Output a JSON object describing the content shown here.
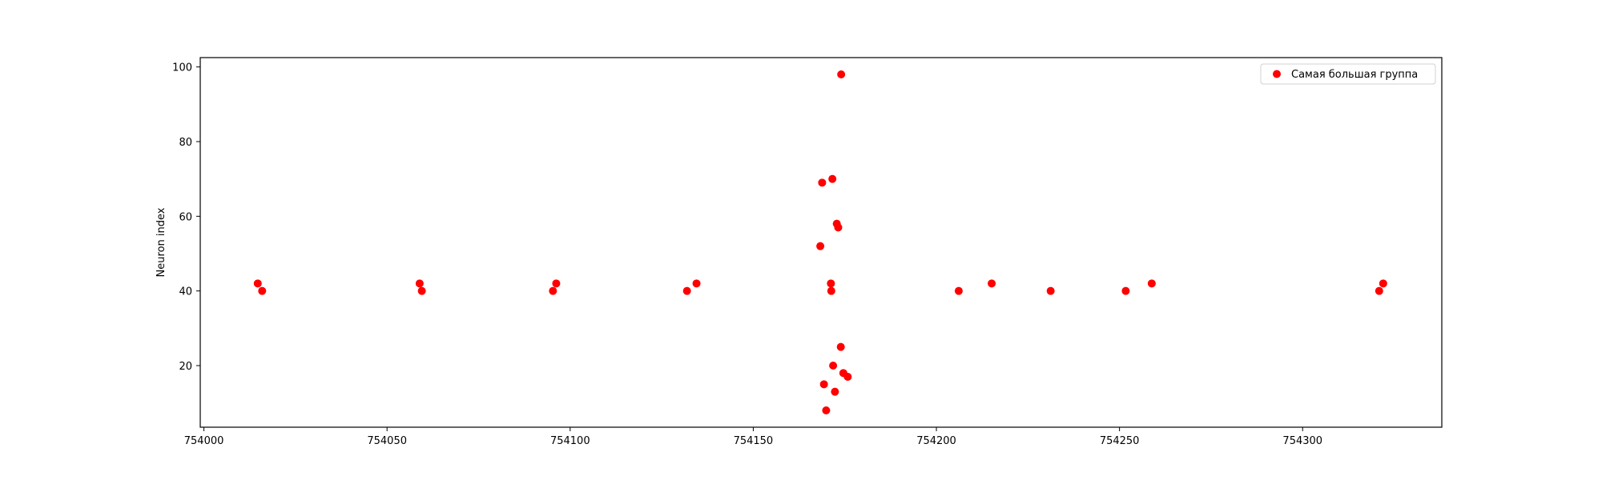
{
  "chart_data": {
    "type": "scatter",
    "title": "",
    "xlabel": "",
    "ylabel": "Neuron index",
    "xlim": [
      753999,
      754338
    ],
    "ylim": [
      3.5,
      102.5
    ],
    "xticks": [
      754000,
      754050,
      754100,
      754150,
      754200,
      754250,
      754300
    ],
    "xtick_labels": [
      "754000",
      "754050",
      "754100",
      "754150",
      "754200",
      "754250",
      "754300"
    ],
    "yticks": [
      20,
      40,
      60,
      80,
      100
    ],
    "ytick_labels": [
      "20",
      "40",
      "60",
      "80",
      "100"
    ],
    "grid": false,
    "legend": {
      "placement": "top-right",
      "entries": [
        "Самая большая группа"
      ]
    },
    "series": [
      {
        "name": "Самая большая группа",
        "color": "#ff0000",
        "marker": "circle",
        "points": [
          {
            "x": 754014.7,
            "y": 42
          },
          {
            "x": 754015.9,
            "y": 40
          },
          {
            "x": 754058.9,
            "y": 42
          },
          {
            "x": 754059.5,
            "y": 40
          },
          {
            "x": 754095.3,
            "y": 40
          },
          {
            "x": 754096.2,
            "y": 42
          },
          {
            "x": 754131.9,
            "y": 40
          },
          {
            "x": 754134.5,
            "y": 42
          },
          {
            "x": 754168.3,
            "y": 52
          },
          {
            "x": 754168.8,
            "y": 69
          },
          {
            "x": 754169.3,
            "y": 15
          },
          {
            "x": 754169.9,
            "y": 8
          },
          {
            "x": 754171.2,
            "y": 42
          },
          {
            "x": 754171.3,
            "y": 40
          },
          {
            "x": 754171.6,
            "y": 70
          },
          {
            "x": 754171.8,
            "y": 20
          },
          {
            "x": 754172.3,
            "y": 13
          },
          {
            "x": 754172.8,
            "y": 58
          },
          {
            "x": 754173.2,
            "y": 57
          },
          {
            "x": 754173.9,
            "y": 25
          },
          {
            "x": 754174.0,
            "y": 98
          },
          {
            "x": 754174.6,
            "y": 18
          },
          {
            "x": 754175.8,
            "y": 17
          },
          {
            "x": 754206.1,
            "y": 40
          },
          {
            "x": 754215.1,
            "y": 42
          },
          {
            "x": 754231.2,
            "y": 40
          },
          {
            "x": 754251.7,
            "y": 40
          },
          {
            "x": 754258.8,
            "y": 42
          },
          {
            "x": 754320.9,
            "y": 40
          },
          {
            "x": 754322.0,
            "y": 42
          }
        ]
      }
    ]
  }
}
